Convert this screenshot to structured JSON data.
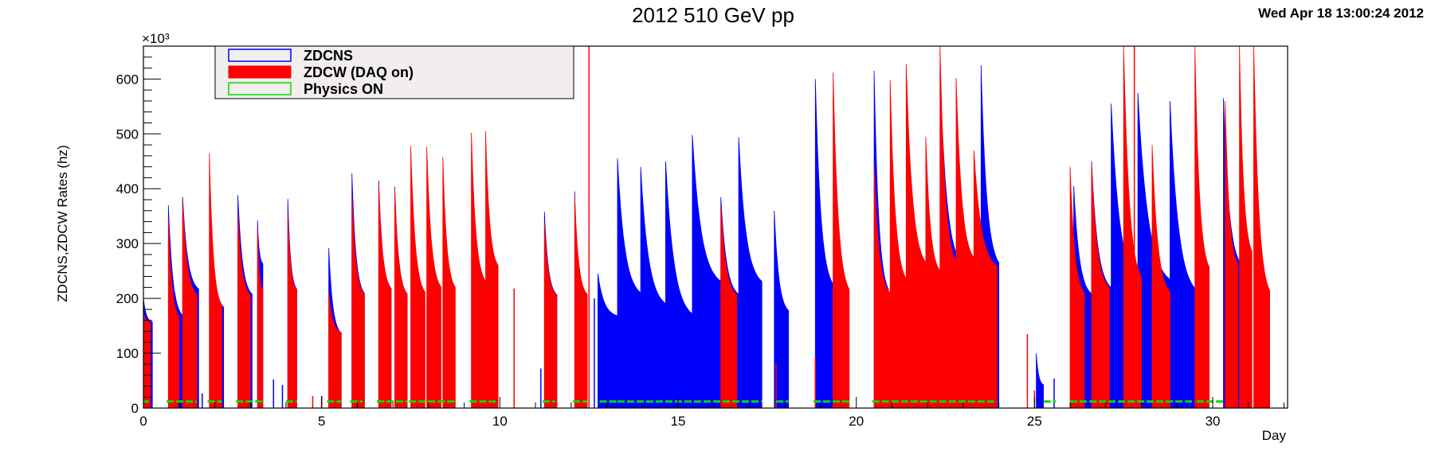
{
  "header": {
    "title": "2012 510 GeV pp",
    "timestamp": "Wed Apr 18 13:00:24 2012"
  },
  "chart_data": {
    "type": "bar",
    "title": "2012 510 GeV pp",
    "xlabel": "Day",
    "ylabel": "ZDCNS,ZDCW Rates (hz)",
    "y_multiplier_label": "×10³",
    "xlim": [
      0,
      32.1
    ],
    "ylim": [
      0,
      660
    ],
    "x_ticks": [
      0,
      5,
      10,
      15,
      20,
      25,
      30
    ],
    "y_ticks": [
      0,
      100,
      200,
      300,
      400,
      500,
      600
    ],
    "grid": false,
    "legend_position": "top-left",
    "legend": [
      {
        "label": "ZDCNS",
        "color": "#0000ff"
      },
      {
        "label": "ZDCW (DAQ on)",
        "color": "#ff0000"
      },
      {
        "label": "Physics ON",
        "color": "#00dd00"
      }
    ],
    "series": [
      {
        "name": "ZDCNS",
        "color": "#0000ff",
        "fills": [
          {
            "start": 0.0,
            "end": 0.25,
            "peak": 200,
            "floor": 155
          },
          {
            "start": 0.7,
            "end": 1.1,
            "peak": 370,
            "floor": 160
          },
          {
            "start": 1.1,
            "end": 1.55,
            "peak": 385,
            "floor": 210
          },
          {
            "start": 1.85,
            "end": 2.25,
            "peak": 390,
            "floor": 175
          },
          {
            "start": 2.65,
            "end": 3.05,
            "peak": 388,
            "floor": 200
          },
          {
            "start": 3.2,
            "end": 3.35,
            "peak": 342,
            "floor": 260
          },
          {
            "start": 4.05,
            "end": 4.3,
            "peak": 381,
            "floor": 210
          },
          {
            "start": 5.2,
            "end": 5.55,
            "peak": 292,
            "floor": 130
          },
          {
            "start": 5.85,
            "end": 6.2,
            "peak": 428,
            "floor": 200
          },
          {
            "start": 6.6,
            "end": 6.95,
            "peak": 415,
            "floor": 210
          },
          {
            "start": 7.05,
            "end": 7.4,
            "peak": 404,
            "floor": 200
          },
          {
            "start": 11.25,
            "end": 11.6,
            "peak": 358,
            "floor": 200
          },
          {
            "start": 12.1,
            "end": 12.3,
            "peak": 395,
            "floor": 200
          },
          {
            "start": 12.75,
            "end": 13.3,
            "peak": 245,
            "floor": 165
          },
          {
            "start": 13.3,
            "end": 13.95,
            "peak": 455,
            "floor": 200
          },
          {
            "start": 13.95,
            "end": 14.65,
            "peak": 440,
            "floor": 180
          },
          {
            "start": 14.65,
            "end": 15.4,
            "peak": 450,
            "floor": 160
          },
          {
            "start": 15.4,
            "end": 16.2,
            "peak": 498,
            "floor": 220
          },
          {
            "start": 16.2,
            "end": 16.7,
            "peak": 385,
            "floor": 200
          },
          {
            "start": 16.7,
            "end": 17.35,
            "peak": 494,
            "floor": 220
          },
          {
            "start": 17.7,
            "end": 18.1,
            "peak": 360,
            "floor": 170
          },
          {
            "start": 18.85,
            "end": 19.35,
            "peak": 600,
            "floor": 210
          },
          {
            "start": 20.5,
            "end": 20.9,
            "peak": 615,
            "floor": 200
          },
          {
            "start": 22.35,
            "end": 22.95,
            "peak": 612,
            "floor": 250
          },
          {
            "start": 23.5,
            "end": 24.0,
            "peak": 625,
            "floor": 250
          },
          {
            "start": 25.05,
            "end": 25.25,
            "peak": 100,
            "floor": 40
          },
          {
            "start": 26.1,
            "end": 26.6,
            "peak": 405,
            "floor": 200
          },
          {
            "start": 26.6,
            "end": 27.15,
            "peak": 450,
            "floor": 210
          },
          {
            "start": 27.15,
            "end": 27.9,
            "peak": 555,
            "floor": 220
          },
          {
            "start": 27.9,
            "end": 28.8,
            "peak": 575,
            "floor": 220
          },
          {
            "start": 28.8,
            "end": 29.55,
            "peak": 560,
            "floor": 200
          },
          {
            "start": 30.3,
            "end": 30.8,
            "peak": 565,
            "floor": 250
          }
        ],
        "spikes": [
          {
            "x": 0.2,
            "v": 26
          },
          {
            "x": 1.65,
            "v": 27
          },
          {
            "x": 2.85,
            "v": 26
          },
          {
            "x": 3.65,
            "v": 52
          },
          {
            "x": 3.9,
            "v": 42
          },
          {
            "x": 5.0,
            "v": 22
          },
          {
            "x": 11.15,
            "v": 72
          },
          {
            "x": 12.65,
            "v": 200
          },
          {
            "x": 25.55,
            "v": 54
          }
        ]
      },
      {
        "name": "ZDCW (DAQ on)",
        "color": "#ff0000",
        "fills": [
          {
            "start": 0.0,
            "end": 0.2,
            "peak": 175,
            "floor": 155
          },
          {
            "start": 0.7,
            "end": 1.0,
            "peak": 345,
            "floor": 160
          },
          {
            "start": 1.1,
            "end": 1.5,
            "peak": 380,
            "floor": 200
          },
          {
            "start": 1.85,
            "end": 2.2,
            "peak": 465,
            "floor": 175
          },
          {
            "start": 2.65,
            "end": 3.0,
            "peak": 355,
            "floor": 200
          },
          {
            "start": 3.2,
            "end": 3.35,
            "peak": 330,
            "floor": 210
          },
          {
            "start": 4.05,
            "end": 4.3,
            "peak": 355,
            "floor": 210
          },
          {
            "start": 5.2,
            "end": 5.55,
            "peak": 210,
            "floor": 135
          },
          {
            "start": 5.85,
            "end": 6.2,
            "peak": 388,
            "floor": 200
          },
          {
            "start": 6.6,
            "end": 6.95,
            "peak": 410,
            "floor": 210
          },
          {
            "start": 7.05,
            "end": 7.4,
            "peak": 400,
            "floor": 200
          },
          {
            "start": 7.5,
            "end": 7.9,
            "peak": 478,
            "floor": 200
          },
          {
            "start": 7.95,
            "end": 8.35,
            "peak": 476,
            "floor": 210
          },
          {
            "start": 8.4,
            "end": 8.75,
            "peak": 458,
            "floor": 210
          },
          {
            "start": 9.2,
            "end": 9.6,
            "peak": 502,
            "floor": 220
          },
          {
            "start": 9.6,
            "end": 9.95,
            "peak": 505,
            "floor": 250
          },
          {
            "start": 11.25,
            "end": 11.6,
            "peak": 340,
            "floor": 200
          },
          {
            "start": 12.1,
            "end": 12.45,
            "peak": 385,
            "floor": 200
          },
          {
            "start": 16.2,
            "end": 16.65,
            "peak": 370,
            "floor": 200
          },
          {
            "start": 19.35,
            "end": 19.8,
            "peak": 612,
            "floor": 200
          },
          {
            "start": 20.5,
            "end": 20.95,
            "peak": 440,
            "floor": 200
          },
          {
            "start": 20.95,
            "end": 21.4,
            "peak": 598,
            "floor": 220
          },
          {
            "start": 21.4,
            "end": 21.95,
            "peak": 628,
            "floor": 250
          },
          {
            "start": 21.95,
            "end": 22.35,
            "peak": 495,
            "floor": 240
          },
          {
            "start": 22.35,
            "end": 22.8,
            "peak": 660,
            "floor": 250
          },
          {
            "start": 22.8,
            "end": 23.3,
            "peak": 602,
            "floor": 260
          },
          {
            "start": 23.3,
            "end": 23.95,
            "peak": 470,
            "floor": 250
          },
          {
            "start": 26.0,
            "end": 26.4,
            "peak": 440,
            "floor": 200
          },
          {
            "start": 26.6,
            "end": 27.1,
            "peak": 445,
            "floor": 210
          },
          {
            "start": 27.5,
            "end": 28.0,
            "peak": 660,
            "floor": 220
          },
          {
            "start": 28.3,
            "end": 28.8,
            "peak": 480,
            "floor": 200
          },
          {
            "start": 29.5,
            "end": 29.9,
            "peak": 660,
            "floor": 240
          },
          {
            "start": 30.35,
            "end": 30.7,
            "peak": 560,
            "floor": 250
          },
          {
            "start": 30.75,
            "end": 31.1,
            "peak": 660,
            "floor": 270
          },
          {
            "start": 31.15,
            "end": 31.6,
            "peak": 660,
            "floor": 195
          }
        ],
        "spikes": [
          {
            "x": 4.75,
            "v": 22
          },
          {
            "x": 5.0,
            "v": 20
          },
          {
            "x": 10.4,
            "v": 218
          },
          {
            "x": 12.5,
            "v": 660
          },
          {
            "x": 17.75,
            "v": 82
          },
          {
            "x": 18.85,
            "v": 92
          },
          {
            "x": 24.8,
            "v": 135
          },
          {
            "x": 25.0,
            "v": 32
          },
          {
            "x": 27.8,
            "v": 660
          }
        ]
      },
      {
        "name": "Physics ON",
        "color": "#00dd00",
        "level": 12,
        "segments": [
          [
            0.0,
            0.15
          ],
          [
            0.65,
            1.5
          ],
          [
            1.8,
            2.2
          ],
          [
            2.6,
            3.35
          ],
          [
            4.0,
            4.3
          ],
          [
            5.15,
            5.55
          ],
          [
            5.8,
            6.15
          ],
          [
            6.55,
            7.4
          ],
          [
            7.45,
            8.75
          ],
          [
            9.15,
            9.95
          ],
          [
            11.2,
            11.55
          ],
          [
            12.05,
            12.45
          ],
          [
            12.8,
            13.3
          ],
          [
            13.3,
            17.35
          ],
          [
            17.75,
            18.1
          ],
          [
            18.8,
            19.8
          ],
          [
            20.45,
            23.95
          ],
          [
            25.25,
            25.6
          ],
          [
            26.0,
            29.5
          ],
          [
            29.55,
            30.3
          ]
        ]
      }
    ]
  }
}
